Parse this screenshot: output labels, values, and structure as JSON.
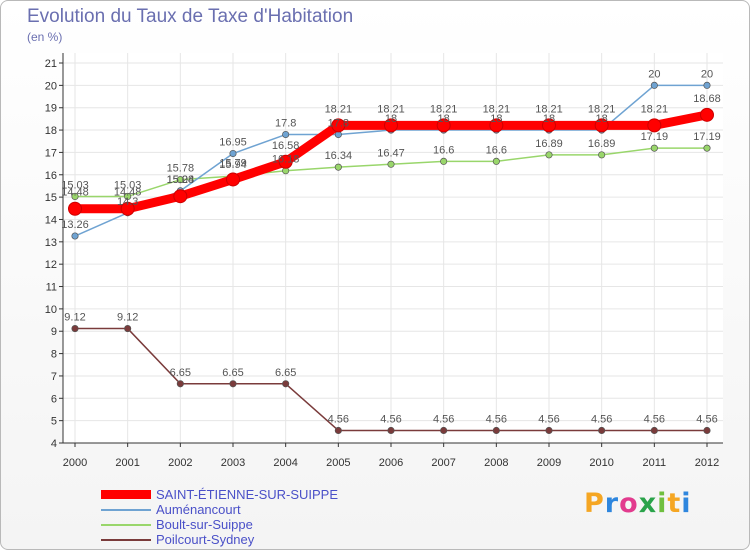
{
  "title": "Evolution du Taux de Taxe d'Habitation",
  "subtitle": "(en %)",
  "logo": {
    "letters": [
      "P",
      "r",
      "o",
      "x",
      "i",
      "t",
      "i"
    ],
    "colors": [
      "#f5a623",
      "#2e86de",
      "#e23b8e",
      "#2aa34a",
      "#6fbf3f",
      "#f5a623",
      "#2e86de"
    ]
  },
  "chart_data": {
    "type": "line",
    "title": "Evolution du Taux de Taxe d'Habitation",
    "ylabel": "(en %)",
    "xlabel": "",
    "ylim": [
      4,
      21
    ],
    "y_ticks": [
      "4",
      "5",
      "6",
      "7",
      "8",
      "9",
      "10",
      "11",
      "12",
      "13",
      "14",
      "15",
      "16",
      "17",
      "18",
      "19",
      "20",
      "21"
    ],
    "x": [
      "2000",
      "2001",
      "2002",
      "2003",
      "2004",
      "2005",
      "2006",
      "2007",
      "2008",
      "2009",
      "2010",
      "2011",
      "2012"
    ],
    "series": [
      {
        "name": "SAINT-ÉTIENNE-SUR-SUIPPE",
        "color": "#ff0000",
        "values": [
          14.48,
          14.48,
          15.04,
          15.79,
          16.58,
          18.21,
          18.21,
          18.21,
          18.21,
          18.21,
          18.21,
          18.21,
          18.68
        ],
        "labels": [
          "14.48",
          "14.48",
          "15.04",
          "15.79",
          "16.58",
          "18.21",
          "18.21",
          "18.21",
          "18.21",
          "18.21",
          "18.21",
          "18.21",
          "18.68"
        ]
      },
      {
        "name": "Auménancourt",
        "color": "#6fa3d2",
        "values": [
          13.26,
          14.3,
          15.28,
          16.95,
          17.8,
          17.8,
          18,
          18,
          18,
          18,
          18,
          20,
          20
        ],
        "labels": [
          "13.26",
          "14.3",
          "15.28",
          "16.95",
          "17.8",
          "17.8",
          "18",
          "18",
          "18",
          "18",
          "18",
          "20",
          "20"
        ]
      },
      {
        "name": "Boult-sur-Suippe",
        "color": "#99d66b",
        "values": [
          15.03,
          15.03,
          15.78,
          15.94,
          16.18,
          16.34,
          16.47,
          16.6,
          16.6,
          16.89,
          16.89,
          17.19,
          17.19
        ],
        "labels": [
          "15.03",
          "15.03",
          "15.78",
          "15.94",
          "16.18",
          "16.34",
          "16.47",
          "16.6",
          "16.6",
          "16.89",
          "16.89",
          "17.19",
          "17.19"
        ]
      },
      {
        "name": "Poilcourt-Sydney",
        "color": "#7a3b3b",
        "values": [
          9.12,
          9.12,
          6.65,
          6.65,
          6.65,
          4.56,
          4.56,
          4.56,
          4.56,
          4.56,
          4.56,
          4.56,
          4.56
        ],
        "labels": [
          "9.12",
          "9.12",
          "6.65",
          "6.65",
          "6.65",
          "4.56",
          "4.56",
          "4.56",
          "4.56",
          "4.56",
          "4.56",
          "4.56",
          "4.56"
        ]
      }
    ]
  }
}
